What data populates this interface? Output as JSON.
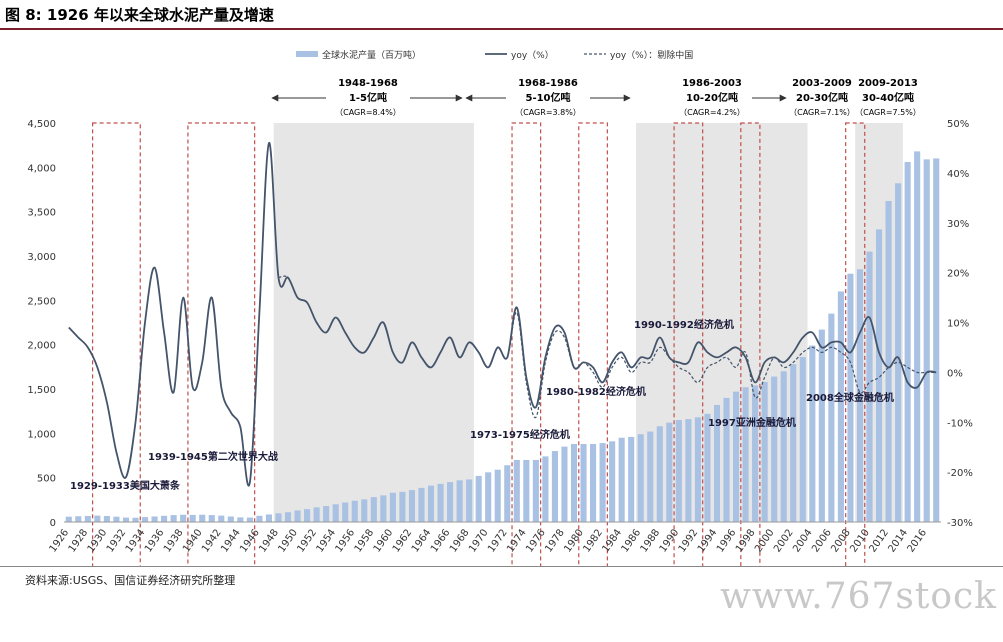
{
  "figure": {
    "title": "图 8: 1926 年以来全球水泥产量及增速",
    "source": "资料来源:USGS、国信证券经济研究所整理",
    "watermark": "www.767stock"
  },
  "colors": {
    "bar": "#a9c1e2",
    "line_yoy": "#44546a",
    "line_ex_china": "#44546a",
    "shade": "#e6e6e6",
    "crisis_box": "#c0504d",
    "title_rule": "#7a1f2b"
  },
  "chart_data": {
    "type": "bar",
    "legend": [
      "全球水泥产量（百万吨）",
      "yoy（%）",
      "yoy（%）：剔除中国"
    ],
    "y_left_lim": [
      0,
      4500
    ],
    "y_left_ticks": [
      "0",
      "500",
      "1,000",
      "1,500",
      "2,000",
      "2,500",
      "3,000",
      "3,500",
      "4,000",
      "4,500"
    ],
    "y_right_lim": [
      -30,
      50
    ],
    "y_right_ticks": [
      "-30%",
      "-20%",
      "-10%",
      "0%",
      "10%",
      "20%",
      "30%",
      "40%",
      "50%"
    ],
    "x_ticks": [
      "1926",
      "1928",
      "1930",
      "1932",
      "1934",
      "1936",
      "1938",
      "1940",
      "1942",
      "1944",
      "1946",
      "1948",
      "1950",
      "1952",
      "1954",
      "1956",
      "1958",
      "1960",
      "1962",
      "1964",
      "1966",
      "1968",
      "1970",
      "1972",
      "1974",
      "1976",
      "1978",
      "1980",
      "1982",
      "1984",
      "1986",
      "1988",
      "1990",
      "1992",
      "1994",
      "1996",
      "1998",
      "2000",
      "2002",
      "2004",
      "2006",
      "2008",
      "2010",
      "2012",
      "2014",
      "2016"
    ],
    "years": [
      1926,
      1927,
      1928,
      1929,
      1930,
      1931,
      1932,
      1933,
      1934,
      1935,
      1936,
      1937,
      1938,
      1939,
      1940,
      1941,
      1942,
      1943,
      1944,
      1945,
      1946,
      1947,
      1948,
      1949,
      1950,
      1951,
      1952,
      1953,
      1954,
      1955,
      1956,
      1957,
      1958,
      1959,
      1960,
      1961,
      1962,
      1963,
      1964,
      1965,
      1966,
      1967,
      1968,
      1969,
      1970,
      1971,
      1972,
      1973,
      1974,
      1975,
      1976,
      1977,
      1978,
      1979,
      1980,
      1981,
      1982,
      1983,
      1984,
      1985,
      1986,
      1987,
      1988,
      1989,
      1990,
      1991,
      1992,
      1993,
      1994,
      1995,
      1996,
      1997,
      1998,
      1999,
      2000,
      2001,
      2002,
      2003,
      2004,
      2005,
      2006,
      2007,
      2008,
      2009,
      2010,
      2011,
      2012,
      2013,
      2014,
      2015,
      2016,
      2017
    ],
    "series": [
      {
        "name": "全球水泥产量（百万吨）",
        "kind": "bar",
        "values": [
          60,
          65,
          68,
          72,
          68,
          60,
          50,
          48,
          55,
          62,
          70,
          78,
          82,
          80,
          82,
          78,
          72,
          62,
          52,
          50,
          70,
          85,
          98,
          110,
          130,
          145,
          165,
          180,
          200,
          220,
          240,
          255,
          280,
          300,
          330,
          340,
          360,
          385,
          410,
          430,
          450,
          470,
          480,
          520,
          560,
          590,
          640,
          700,
          700,
          700,
          740,
          800,
          850,
          880,
          880,
          880,
          890,
          910,
          950,
          960,
          990,
          1020,
          1080,
          1120,
          1150,
          1160,
          1180,
          1220,
          1320,
          1400,
          1470,
          1520,
          1540,
          1580,
          1640,
          1700,
          1780,
          1860,
          1990,
          2170,
          2350,
          2600,
          2800,
          2850,
          3050,
          3300,
          3620,
          3820,
          4060,
          4180,
          4090,
          4100
        ],
        "labels": []
      },
      {
        "name": "yoy（%）",
        "kind": "line",
        "values": [
          9,
          7,
          5,
          1,
          -6,
          -16,
          -21,
          -10,
          10,
          21,
          8,
          -4,
          15,
          -3,
          2,
          15,
          -3,
          -8,
          -11,
          -22,
          12,
          46,
          19,
          19,
          15,
          14,
          10,
          8,
          11,
          8,
          5,
          4,
          7,
          10,
          4,
          2,
          6,
          3,
          1,
          4,
          7,
          3,
          6,
          4,
          1,
          5,
          3,
          13,
          -1,
          -7,
          3,
          9,
          8,
          1,
          2,
          1,
          -2,
          2,
          4,
          1,
          3,
          3,
          7,
          3,
          2,
          2,
          6,
          4,
          3,
          4,
          5,
          3,
          -2,
          2,
          3,
          2,
          4,
          7,
          8,
          5,
          6,
          6,
          4,
          8,
          11,
          4,
          1,
          3,
          -2,
          -3,
          0,
          0
        ],
        "labels": []
      },
      {
        "name": "yoy（%）：剔除中国",
        "kind": "line-dashed",
        "values": [
          null,
          null,
          null,
          null,
          null,
          null,
          null,
          null,
          null,
          null,
          null,
          null,
          null,
          null,
          null,
          null,
          null,
          null,
          null,
          null,
          null,
          null,
          19,
          19,
          15,
          14,
          10,
          8,
          11,
          8,
          5,
          4,
          7,
          10,
          4,
          2,
          6,
          3,
          1,
          4,
          7,
          3,
          6,
          4,
          1,
          5,
          3,
          12,
          -2,
          -9,
          2,
          8,
          7,
          1,
          2,
          0,
          -3,
          1,
          3,
          0,
          2,
          2,
          5,
          3,
          1,
          0,
          -2,
          1,
          2,
          3,
          1,
          4,
          -5,
          -1,
          3,
          1,
          2,
          4,
          5,
          4,
          5,
          4,
          2,
          -4,
          -2,
          -1,
          1,
          2,
          1,
          0,
          0,
          0
        ],
        "labels": []
      }
    ],
    "eras": [
      {
        "years": "1948-1968",
        "range": "1-5亿吨",
        "cagr": "（CAGR=8.4%）"
      },
      {
        "years": "1968-1986",
        "range": "5-10亿吨",
        "cagr": "（CAGR=3.8%）"
      },
      {
        "years": "1986-2003",
        "range": "10-20亿吨",
        "cagr": "（CAGR=4.2%）"
      },
      {
        "years": "2003-2009",
        "range": "20-30亿吨",
        "cagr": "（CAGR=7.1%）"
      },
      {
        "years": "2009-2013",
        "range": "30-40亿吨",
        "cagr": "（CAGR=7.5%）"
      }
    ],
    "crises": [
      {
        "label": "1929-1933美国大萧条"
      },
      {
        "label": "1939-1945第二次世界大战"
      },
      {
        "label": "1973-1975经济危机"
      },
      {
        "label": "1980-1982经济危机"
      },
      {
        "label": "1990-1992经济危机"
      },
      {
        "label": "1997亚洲金融危机"
      },
      {
        "label": "2008全球金融危机"
      }
    ]
  }
}
